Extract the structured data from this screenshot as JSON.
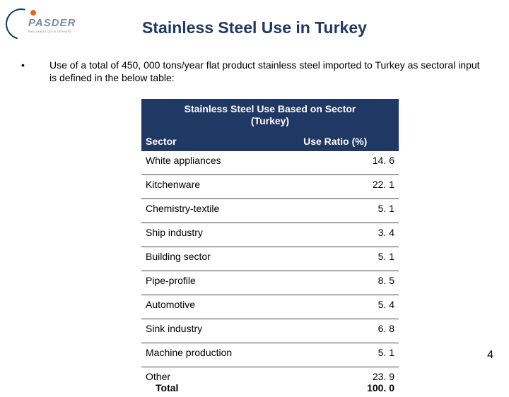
{
  "logo": {
    "text": "PASDER",
    "subtext": "PASLANMAZ ÇELIK DERNEĞİ"
  },
  "title": "Stainless Steel Use in Turkey",
  "bullet": "Use of a total of 450, 000 tons/year flat product stainless steel imported to Turkey as sectoral input is defined in the below table:",
  "table": {
    "header_title_l1": "Stainless Steel Use Based on Sector",
    "header_title_l2": "(Turkey)",
    "col1": "Sector",
    "col2": "Use Ratio (%)",
    "rows": [
      {
        "sector": "White appliances",
        "ratio": "14. 6"
      },
      {
        "sector": "Kitchenware",
        "ratio": "22. 1"
      },
      {
        "sector": "Chemistry-textile",
        "ratio": "5. 1"
      },
      {
        "sector": "Ship industry",
        "ratio": "3. 4"
      },
      {
        "sector": "Building sector",
        "ratio": "5. 1"
      },
      {
        "sector": "Pipe-profile",
        "ratio": "8. 5"
      },
      {
        "sector": "Automotive",
        "ratio": "5. 4"
      },
      {
        "sector": "Sink industry",
        "ratio": "6. 8"
      },
      {
        "sector": "Machine production",
        "ratio": "5. 1"
      }
    ],
    "other_label": "Other",
    "other_ratio": "23. 9",
    "total_label": "Total",
    "total_ratio": "100. 0"
  },
  "page_number": "4",
  "colors": {
    "title": "#203864",
    "table_header_bg": "#203864",
    "logo_arc": "#0a3a6d",
    "logo_dot": "#e9651d"
  }
}
